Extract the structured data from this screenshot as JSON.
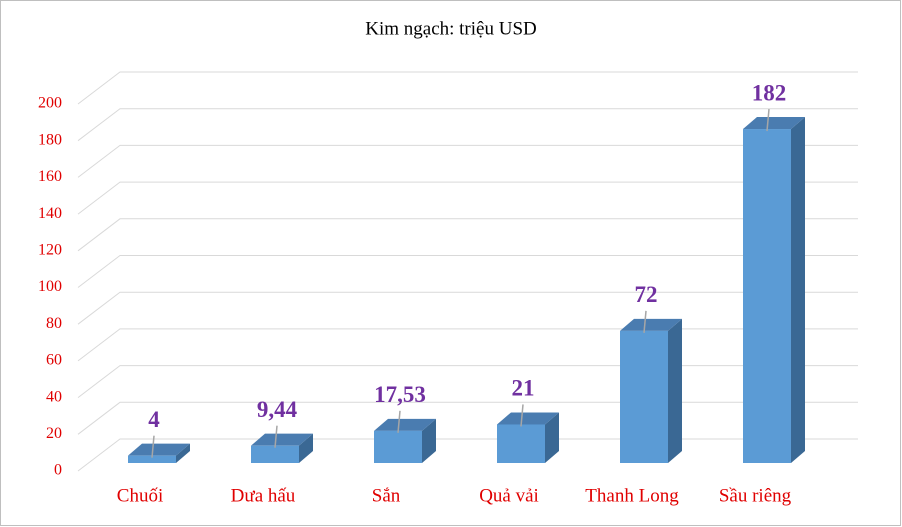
{
  "chart_data": {
    "type": "bar3d",
    "title": "Kim ngạch:  triệu USD",
    "categories": [
      "Chuối",
      "Dưa hấu",
      "Sắn",
      "Quả vải",
      "Thanh Long",
      "Sầu riêng"
    ],
    "values": [
      4,
      9.44,
      17.53,
      21,
      72,
      182
    ],
    "value_labels": [
      "4",
      "9,44",
      "17,53",
      "21",
      "72",
      "182"
    ],
    "color": "#5b9bd5",
    "ylim": [
      0,
      200
    ],
    "yticks": [
      0,
      20,
      40,
      60,
      80,
      100,
      120,
      140,
      160,
      180,
      200
    ],
    "grid": true
  }
}
